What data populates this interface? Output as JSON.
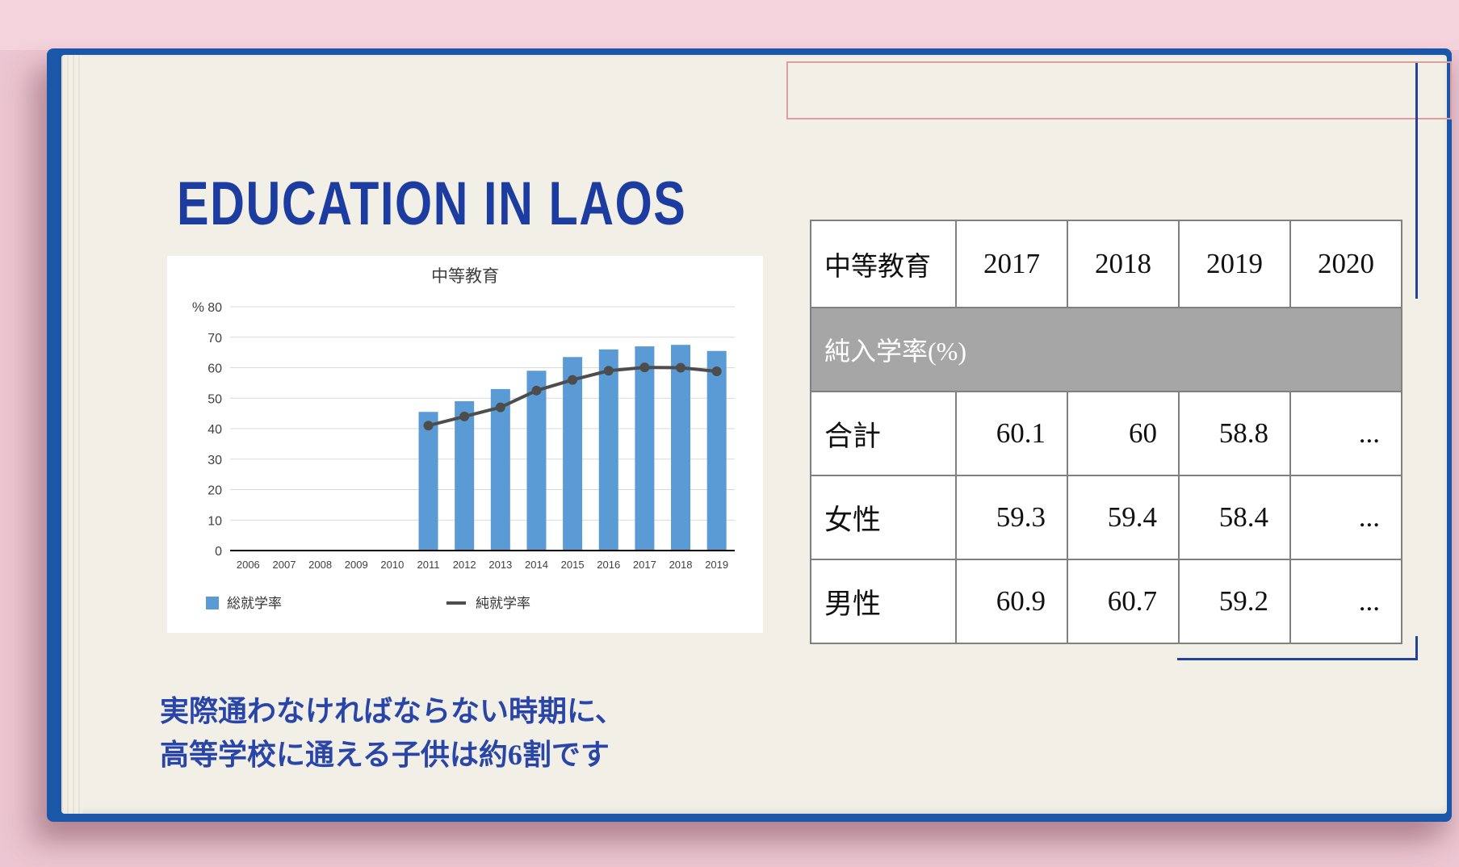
{
  "slide": {
    "title": "EDUCATION IN LAOS",
    "caption": {
      "line1": "実際通わなければならない時期に、",
      "line2": "高等学校に通える子供は約6割です"
    }
  },
  "chart_data": {
    "type": "bar",
    "title": "中等教育",
    "unit_label": "%",
    "categories": [
      "2006",
      "2007",
      "2008",
      "2009",
      "2010",
      "2011",
      "2012",
      "2013",
      "2014",
      "2015",
      "2016",
      "2017",
      "2018",
      "2019"
    ],
    "series": [
      {
        "name": "総就学率",
        "type": "bar",
        "color": "#5B9BD5",
        "values": [
          null,
          null,
          null,
          null,
          null,
          45.5,
          49,
          53,
          59,
          63.5,
          66,
          67,
          67.5,
          65.5
        ]
      },
      {
        "name": "純就学率",
        "type": "line",
        "color": "#4d4d4d",
        "values": [
          null,
          null,
          null,
          null,
          null,
          41,
          44,
          47,
          52.5,
          56,
          59,
          60.1,
          60,
          58.8
        ]
      }
    ],
    "ylim": [
      0,
      80
    ],
    "ytick_step": 10,
    "grid": true,
    "legend_position": "bottom"
  },
  "table": {
    "header": [
      "中等教育",
      "2017",
      "2018",
      "2019",
      "2020"
    ],
    "band_label": "純入学率(%)",
    "rows": [
      {
        "label": "合計",
        "values": [
          "60.1",
          "60",
          "58.8",
          "..."
        ]
      },
      {
        "label": "女性",
        "values": [
          "59.3",
          "59.4",
          "58.4",
          "..."
        ]
      },
      {
        "label": "男性",
        "values": [
          "60.9",
          "60.7",
          "59.2",
          "..."
        ]
      }
    ]
  },
  "colors": {
    "title_blue": "#1d3ca0",
    "bar_blue": "#5B9BD5",
    "line_gray": "#4d4d4d",
    "band_gray": "#a6a6a6",
    "accent_red": "#dc9e9e",
    "accent_navy": "#24419b",
    "page_cream": "#f2efe6",
    "background_pink": "#ecc6d2",
    "cover_blue": "#1a57a8"
  }
}
